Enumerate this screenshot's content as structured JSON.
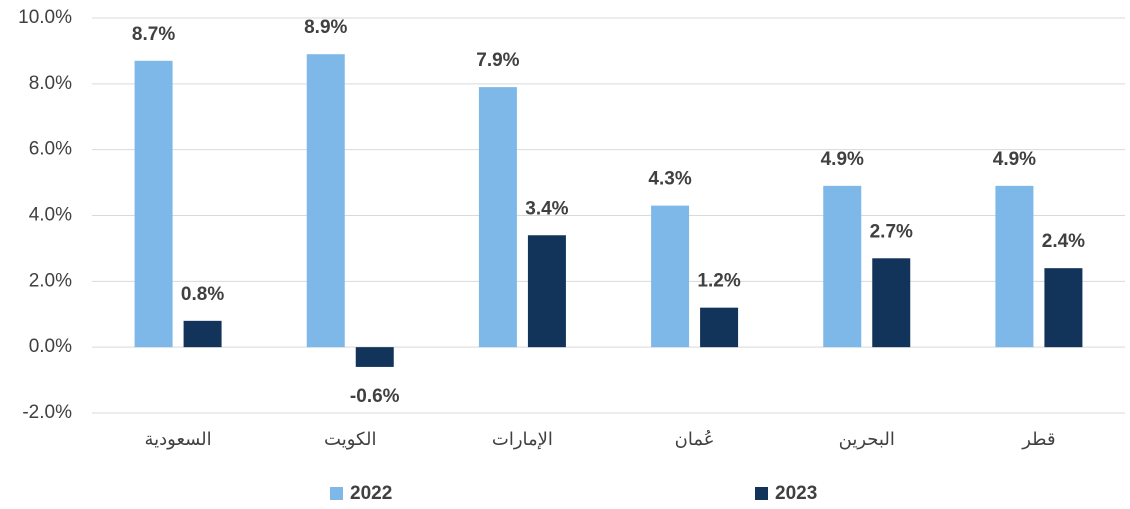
{
  "chart_data": {
    "type": "bar",
    "categories": [
      "السعودية",
      "الكويت",
      "الإمارات",
      "عُمان",
      "البحرين",
      "قطر"
    ],
    "series": [
      {
        "name": "2022",
        "color": "#7db8e8",
        "values": [
          8.7,
          8.9,
          7.9,
          4.3,
          4.9,
          4.9
        ],
        "value_labels": [
          "8.7%",
          "8.9%",
          "7.9%",
          "4.3%",
          "4.9%",
          "4.9%"
        ]
      },
      {
        "name": "2023",
        "color": "#12345a",
        "values": [
          0.8,
          -0.6,
          3.4,
          1.2,
          2.7,
          2.4
        ],
        "value_labels": [
          "0.8%",
          "-0.6%",
          "3.4%",
          "1.2%",
          "2.7%",
          "2.4%"
        ]
      }
    ],
    "ylim": [
      -2,
      10
    ],
    "yticks": [
      {
        "value": -2,
        "label": "-2.0%"
      },
      {
        "value": 0,
        "label": "0.0%"
      },
      {
        "value": 2,
        "label": "2.0%"
      },
      {
        "value": 4,
        "label": "4.0%"
      },
      {
        "value": 6,
        "label": "6.0%"
      },
      {
        "value": 8,
        "label": "8.0%"
      },
      {
        "value": 10,
        "label": "10.0%"
      }
    ],
    "grid": true
  }
}
